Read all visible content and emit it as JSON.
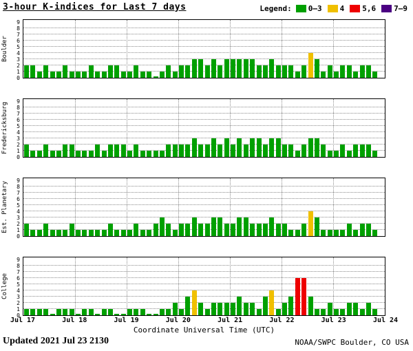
{
  "header": {
    "title": "3-hour K-indices for Last 7 days",
    "legend_label": "Legend:"
  },
  "footer": {
    "updated": "Updated 2021 Jul 23 2130",
    "credit": "NOAA/SWPC Boulder, CO USA"
  },
  "chart_data": {
    "type": "bar",
    "title": "3-hour K-indices for Last 7 days",
    "xlabel": "Coordinate Universal Time (UTC)",
    "x_ticks": [
      "Jul 17",
      "Jul 18",
      "Jul 19",
      "Jul 20",
      "Jul 21",
      "Jul 22",
      "Jul 23",
      "Jul 24"
    ],
    "y_ticks": [
      0,
      1,
      2,
      3,
      4,
      5,
      6,
      7,
      8,
      9
    ],
    "ylim": [
      0,
      9
    ],
    "bars_per_day": 8,
    "grid": "dotted",
    "legend_position": "top-right",
    "legend": [
      {
        "label": "0–3",
        "color": "#00a000"
      },
      {
        "label": "4",
        "color": "#f0c000"
      },
      {
        "label": "5,6",
        "color": "#ee0000"
      },
      {
        "label": "7–9",
        "color": "#4b0082"
      }
    ],
    "series": [
      {
        "name": "Boulder",
        "values": [
          2,
          2,
          1,
          2,
          1,
          1,
          2,
          1,
          1,
          1,
          2,
          1,
          1,
          2,
          2,
          1,
          1,
          2,
          1,
          1,
          0,
          1,
          2,
          1,
          2,
          2,
          3,
          3,
          2,
          3,
          2,
          3,
          3,
          3,
          3,
          3,
          2,
          2,
          3,
          2,
          2,
          2,
          1,
          2,
          4,
          3,
          1,
          2,
          1,
          2,
          2,
          1,
          2,
          2,
          1
        ]
      },
      {
        "name": "Fredericksburg",
        "values": [
          2,
          1,
          1,
          2,
          1,
          1,
          2,
          2,
          1,
          1,
          1,
          2,
          1,
          2,
          2,
          2,
          1,
          2,
          1,
          1,
          1,
          1,
          2,
          2,
          2,
          2,
          3,
          2,
          2,
          3,
          2,
          3,
          2,
          3,
          2,
          3,
          3,
          2,
          3,
          3,
          2,
          2,
          1,
          2,
          3,
          3,
          2,
          1,
          1,
          2,
          1,
          2,
          2,
          2,
          1
        ]
      },
      {
        "name": "Est. Planetary",
        "values": [
          2,
          1,
          1,
          2,
          1,
          1,
          1,
          2,
          1,
          1,
          1,
          1,
          1,
          2,
          1,
          1,
          1,
          2,
          1,
          1,
          2,
          3,
          2,
          1,
          2,
          2,
          3,
          2,
          2,
          3,
          3,
          2,
          2,
          3,
          3,
          2,
          2,
          2,
          3,
          2,
          2,
          1,
          1,
          2,
          4,
          3,
          1,
          1,
          1,
          1,
          2,
          1,
          2,
          2,
          1
        ]
      },
      {
        "name": "College",
        "values": [
          1,
          1,
          1,
          1,
          0,
          1,
          1,
          1,
          0,
          1,
          1,
          0,
          1,
          1,
          0,
          0,
          1,
          1,
          1,
          0,
          0,
          1,
          1,
          2,
          1,
          3,
          4,
          2,
          1,
          2,
          2,
          2,
          2,
          3,
          2,
          2,
          1,
          3,
          4,
          1,
          2,
          3,
          6,
          6,
          3,
          1,
          1,
          2,
          1,
          1,
          2,
          2,
          1,
          2,
          1
        ]
      }
    ]
  }
}
